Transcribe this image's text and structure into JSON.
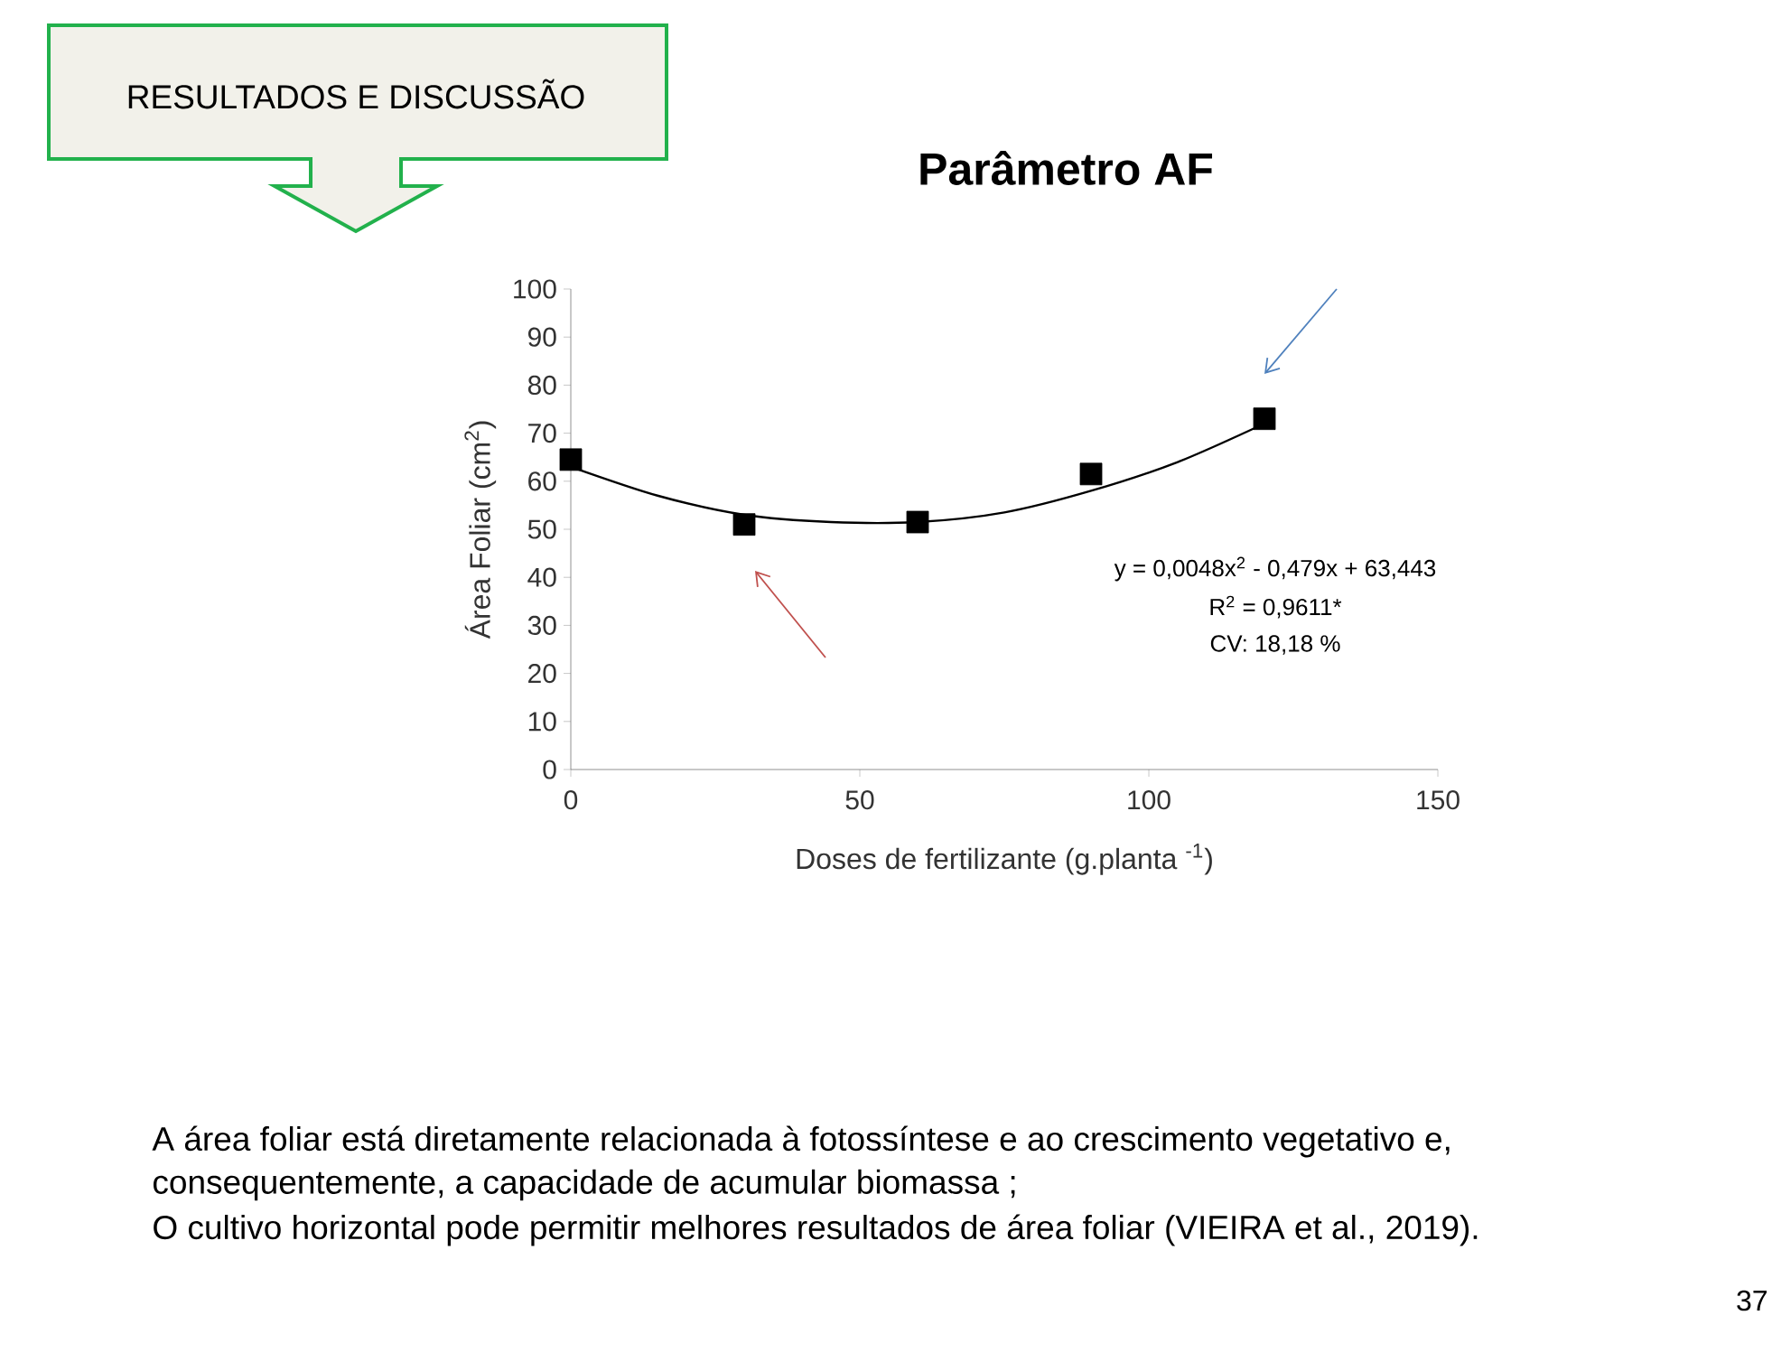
{
  "chart_data": {
    "type": "scatter",
    "title": "Parâmetro AF",
    "xlabel": "Doses de fertilizante (g.planta $^{-1}$)",
    "ylabel": "Área Foliar (cm$^{2}$)",
    "x": [
      0,
      30,
      60,
      90,
      120
    ],
    "series": [
      {
        "color": "#000000",
        "marker": "square",
        "values": [
          64.5,
          51,
          51.5,
          61.5,
          73
        ]
      },
      {
        "type": "line",
        "color": "#000000",
        "marker": "none",
        "x": [
          0,
          15,
          30,
          45,
          60,
          75,
          90,
          105,
          120
        ],
        "values": [
          63,
          57,
          53,
          51.5,
          51.5,
          53.5,
          58,
          64,
          72
        ]
      }
    ],
    "xlim": [
      0,
      150
    ],
    "ylim": [
      0,
      100
    ],
    "xticks": [
      0,
      50,
      100,
      150
    ],
    "yticks": [
      0,
      10,
      20,
      30,
      40,
      50,
      60,
      70,
      80,
      90,
      100
    ],
    "grid": false,
    "annotations": [
      "y = 0,0048x$^{2}$ - 0,479x + 63,443",
      "R$^{2}$ = 0,9611*",
      "CV: 18,18 %",
      "RESULTADOS E DISCUSSÃO",
      "A área foliar está diretamente relacionada à fotossíntese e ao crescimento vegetativo e,",
      "consequentemente, a capacidade de acumular biomassa ;",
      "O cultivo horizontal pode permitir melhores resultados de área foliar  (VIEIRA et al., 2019).",
      "37"
    ]
  }
}
